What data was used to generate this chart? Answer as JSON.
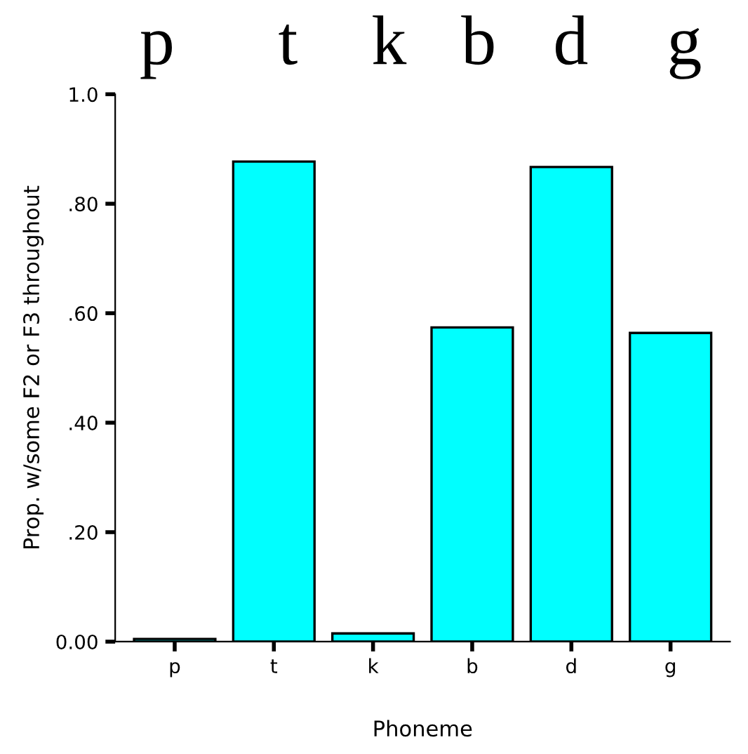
{
  "chart_data": {
    "type": "bar",
    "xlabel": "Phoneme",
    "ylabel": "Prop. w/some F2 or F3 throughout",
    "categories": [
      "p",
      "t",
      "k",
      "b",
      "d",
      "g"
    ],
    "values": [
      0.005,
      0.877,
      0.015,
      0.574,
      0.867,
      0.564
    ],
    "color": "#00ffff",
    "ylim": [
      0,
      1.0
    ],
    "yticks": [
      {
        "value": 0,
        "label": "0.00"
      },
      {
        "value": 0.2,
        "label": ".20"
      },
      {
        "value": 0.4,
        "label": ".40"
      },
      {
        "value": 0.6,
        "label": ".60"
      },
      {
        "value": 0.8,
        "label": ".80"
      },
      {
        "value": 1.0,
        "label": "1.0"
      }
    ],
    "grid": false,
    "legend": false,
    "annotations": [
      "p",
      "t",
      "k",
      "b",
      "d",
      "g"
    ]
  }
}
